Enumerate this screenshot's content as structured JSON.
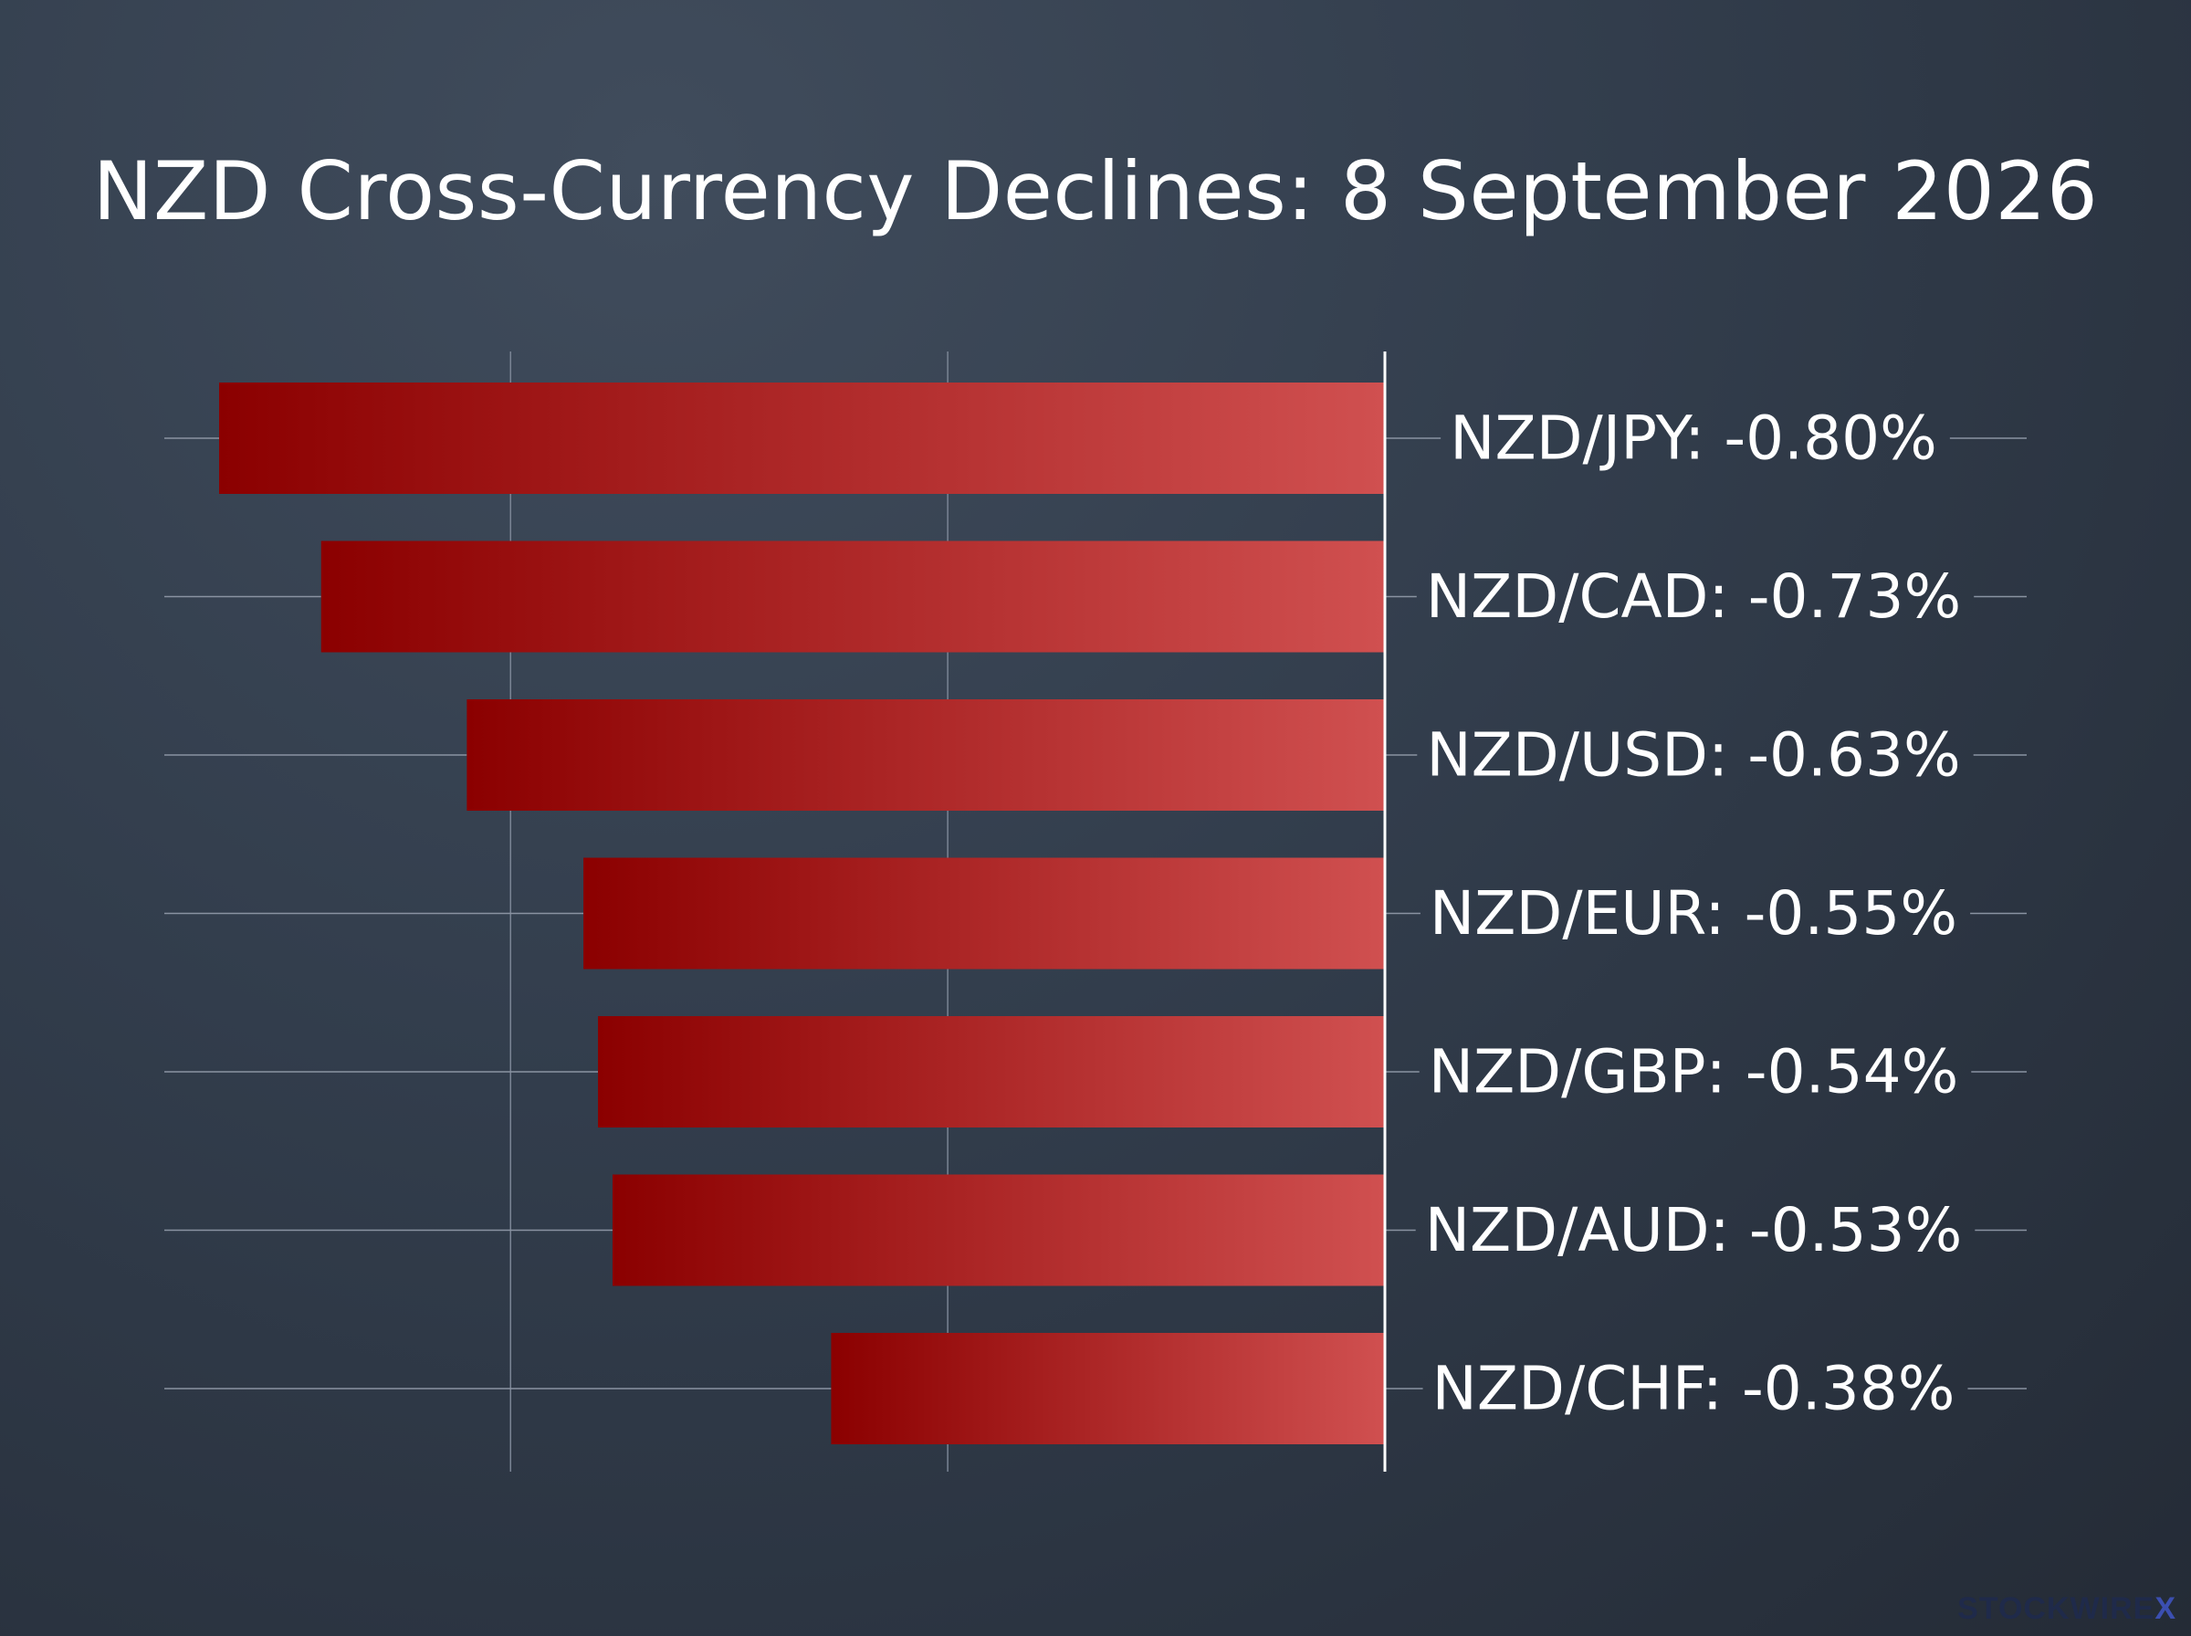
{
  "chart_data": {
    "type": "bar",
    "orientation": "horizontal",
    "title": "NZD Cross-Currency Declines: 8 September 2026",
    "categories": [
      "NZD/JPY",
      "NZD/CAD",
      "NZD/USD",
      "NZD/EUR",
      "NZD/GBP",
      "NZD/AUD",
      "NZD/CHF"
    ],
    "values": [
      -0.8,
      -0.73,
      -0.63,
      -0.55,
      -0.54,
      -0.53,
      -0.38
    ],
    "labels": [
      "NZD/JPY: -0.80%",
      "NZD/CAD: -0.73%",
      "NZD/USD: -0.63%",
      "NZD/EUR: -0.55%",
      "NZD/GBP: -0.54%",
      "NZD/AUD: -0.53%",
      "NZD/CHF: -0.38%"
    ],
    "xlim": [
      -0.8,
      0
    ],
    "grid": true,
    "legend": "none",
    "bar_color_start": "#8b0000",
    "bar_color_end": "#d05050"
  },
  "watermark": {
    "text": "STOCKWIRE",
    "suffix": "X"
  }
}
